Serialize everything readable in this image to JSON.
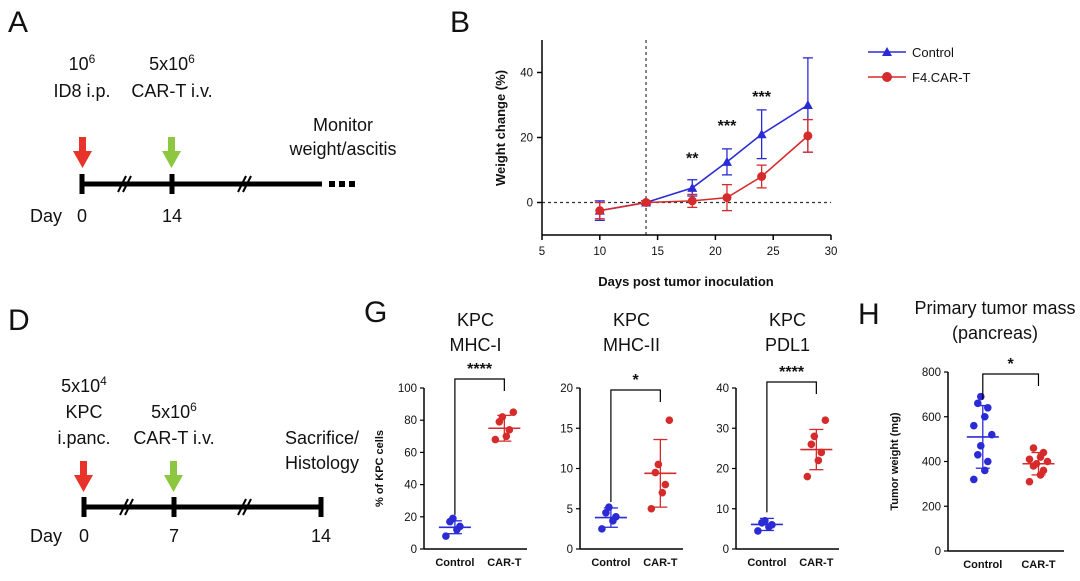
{
  "panels": {
    "A": {
      "letter": "A",
      "dose1": {
        "base": "10",
        "exp": "6",
        "line2": "ID8 i.p."
      },
      "dose2": {
        "base": "5x10",
        "exp": "6",
        "line2": "CAR-T i.v."
      },
      "end_label": [
        "Monitor",
        "weight/ascitis"
      ],
      "day_label": "Day",
      "day_ticks": [
        "0",
        "14"
      ],
      "arrow_colors": {
        "tumor": "#e8332a",
        "cart": "#8dc63f"
      }
    },
    "D": {
      "letter": "D",
      "dose1": {
        "base": "5x10",
        "exp": "4",
        "line2": "KPC",
        "line3": "i.panc."
      },
      "dose2": {
        "base": "5x10",
        "exp": "6",
        "line2": "CAR-T i.v."
      },
      "end_label": [
        "Sacrifice/",
        "Histology"
      ],
      "day_label": "Day",
      "day_ticks": [
        "0",
        "7",
        "14"
      ]
    },
    "G": {
      "letter": "G"
    },
    "H": {
      "letter": "H"
    }
  },
  "chart_data": [
    {
      "panel": "B",
      "letter": "B",
      "type": "line",
      "xlabel": "Days post tumor inoculation",
      "ylabel": "Weight change (%)",
      "xlim": [
        5,
        30
      ],
      "ylim": [
        -10,
        50
      ],
      "xticks": [
        5,
        10,
        15,
        20,
        25,
        30
      ],
      "yticks": [
        0,
        20,
        40
      ],
      "vline_x": 14,
      "hline_y": 0,
      "legend_position": "top-right",
      "series": [
        {
          "name": "Control",
          "color": "#2b2bd6",
          "marker": "triangle",
          "x": [
            10,
            14,
            18,
            21,
            24,
            28
          ],
          "y": [
            -2.5,
            0,
            4.5,
            12.5,
            21,
            30
          ],
          "err": [
            3,
            0.5,
            2.5,
            4,
            7.5,
            14.5
          ]
        },
        {
          "name": "F4.CAR-T",
          "color": "#d62b2b",
          "marker": "circle",
          "x": [
            10,
            14,
            18,
            21,
            24,
            28
          ],
          "y": [
            -2.5,
            0,
            0.5,
            1.5,
            8,
            20.5
          ],
          "err": [
            2.5,
            0.5,
            2,
            4,
            3.5,
            5
          ]
        }
      ],
      "annotations": [
        {
          "x": 18,
          "y": 12,
          "text": "**"
        },
        {
          "x": 21,
          "y": 22,
          "text": "***"
        },
        {
          "x": 24,
          "y": 31,
          "text": "***"
        }
      ]
    },
    {
      "panel": "G1",
      "type": "scatter",
      "title": [
        "KPC",
        "MHC-I"
      ],
      "ylabel": "% of KPC cells",
      "ylim": [
        0,
        100
      ],
      "yticks": [
        0,
        20,
        40,
        60,
        80,
        100
      ],
      "categories": [
        "Control",
        "CAR-T"
      ],
      "colors": [
        "#2b2bd6",
        "#d62b2b"
      ],
      "points": [
        [
          8,
          12,
          14,
          17,
          19
        ],
        [
          68,
          70,
          74,
          79,
          82,
          85
        ]
      ],
      "mean": [
        13.5,
        75
      ],
      "sd": [
        4,
        8
      ],
      "significance": "****"
    },
    {
      "panel": "G2",
      "type": "scatter",
      "title": [
        "KPC",
        "MHC-II"
      ],
      "ylabel": "",
      "ylim": [
        0,
        20
      ],
      "yticks": [
        0,
        5,
        10,
        15,
        20
      ],
      "categories": [
        "Control",
        "CAR-T"
      ],
      "colors": [
        "#2b2bd6",
        "#d62b2b"
      ],
      "points": [
        [
          2.5,
          3.5,
          4,
          4.5,
          5.2
        ],
        [
          5,
          7,
          8,
          9.5,
          10.5,
          16
        ]
      ],
      "mean": [
        3.9,
        9.4
      ],
      "sd": [
        1.2,
        4.2
      ],
      "significance": "*"
    },
    {
      "panel": "G3",
      "type": "scatter",
      "title": [
        "KPC",
        "PDL1"
      ],
      "ylabel": "",
      "ylim": [
        0,
        40
      ],
      "yticks": [
        0,
        10,
        20,
        30,
        40
      ],
      "categories": [
        "Control",
        "CAR-T"
      ],
      "colors": [
        "#2b2bd6",
        "#d62b2b"
      ],
      "points": [
        [
          4.5,
          5.5,
          6,
          6.5,
          7
        ],
        [
          18,
          22,
          24,
          26,
          28,
          32
        ]
      ],
      "mean": [
        6.1,
        24.7
      ],
      "sd": [
        1.5,
        5
      ],
      "significance": "****"
    },
    {
      "panel": "H",
      "type": "scatter",
      "title": [
        "Primary tumor mass",
        "(pancreas)"
      ],
      "ylabel": "Tumor weight (mg)",
      "ylim": [
        0,
        800
      ],
      "yticks": [
        0,
        200,
        400,
        600,
        800
      ],
      "categories": [
        "Control",
        "CAR-T"
      ],
      "colors": [
        "#2b2bd6",
        "#d62b2b"
      ],
      "points": [
        [
          320,
          360,
          400,
          430,
          470,
          520,
          560,
          600,
          640,
          660,
          690
        ],
        [
          310,
          340,
          360,
          380,
          390,
          400,
          410,
          420,
          440,
          460
        ]
      ],
      "mean": [
        510,
        390
      ],
      "sd": [
        140,
        50
      ],
      "significance": "*"
    }
  ]
}
